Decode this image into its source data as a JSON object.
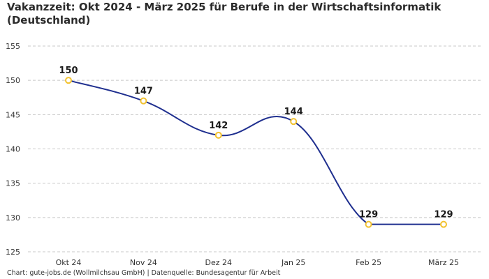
{
  "chart_data": {
    "type": "line",
    "title": "Vakanzzeit: Okt 2024 - März 2025 für Berufe in der Wirtschaftsinformatik (Deutschland)",
    "xlabel": "",
    "ylabel": "",
    "categories": [
      "Okt 24",
      "Nov 24",
      "Dez 24",
      "Jan 25",
      "Feb 25",
      "März 25"
    ],
    "values": [
      150,
      147,
      142,
      144,
      129,
      129
    ],
    "ylim": [
      125,
      155
    ],
    "yticks": [
      125,
      130,
      135,
      140,
      145,
      150,
      155
    ],
    "grid": true,
    "line_color": "#1f2f8f",
    "marker_color": "#f2c230",
    "source": "Chart: gute-jobs.de (Wollmilchsau GmbH) | Datenquelle: Bundesagentur für Arbeit"
  }
}
